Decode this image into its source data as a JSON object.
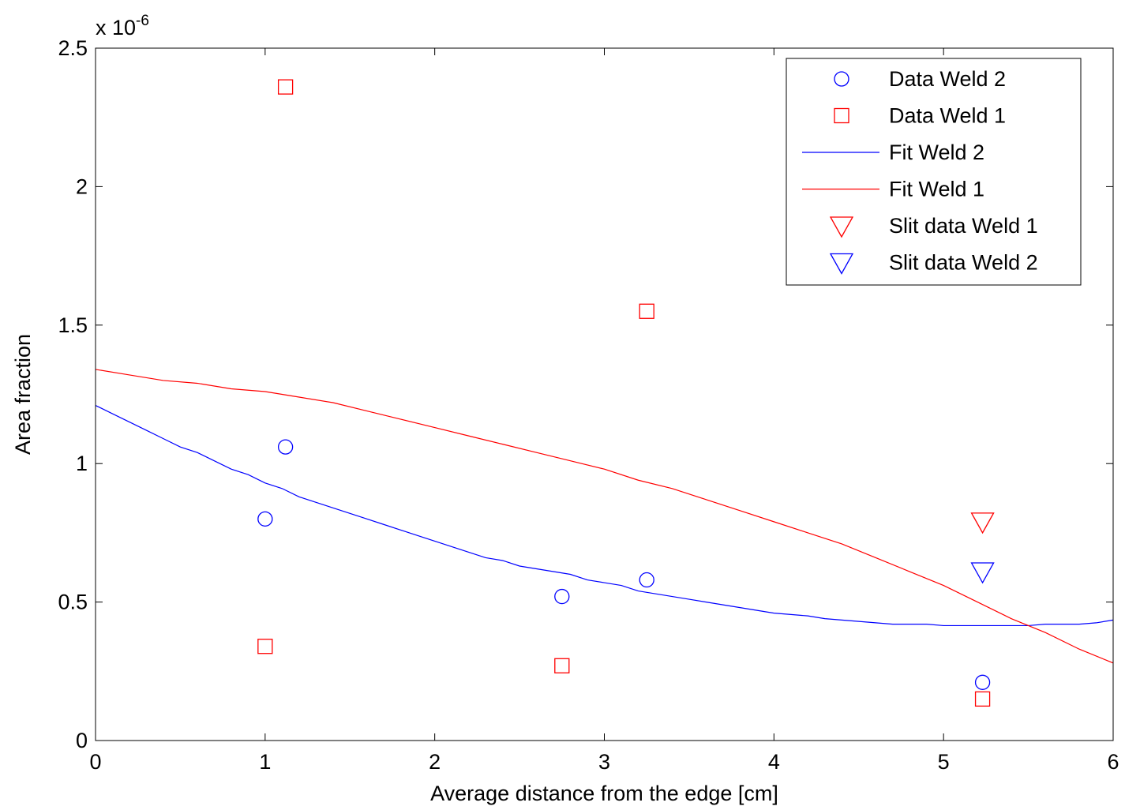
{
  "chart_data": {
    "type": "scatter",
    "xlabel": "Average distance from the edge [cm]",
    "ylabel": "Area fraction",
    "y_exponent_label": "x 10",
    "y_exponent_power": "-6",
    "xlim": [
      0,
      6
    ],
    "ylim": [
      0,
      2.5
    ],
    "x_ticks": [
      0,
      1,
      2,
      3,
      4,
      5,
      6
    ],
    "x_tick_labels": [
      "0",
      "1",
      "2",
      "3",
      "4",
      "5",
      "6"
    ],
    "y_ticks": [
      0,
      0.5,
      1,
      1.5,
      2,
      2.5
    ],
    "y_tick_labels": [
      "0",
      "0.5",
      "1",
      "1.5",
      "2",
      "2.5"
    ],
    "grid": false,
    "legend_position": "top-right",
    "series": [
      {
        "name": "Data Weld 2",
        "kind": "scatter",
        "marker": "circle",
        "color": "#0000ff",
        "x": [
          1.0,
          1.12,
          2.75,
          3.25,
          5.23
        ],
        "y": [
          0.8,
          1.06,
          0.52,
          0.58,
          0.21
        ]
      },
      {
        "name": "Data Weld 1",
        "kind": "scatter",
        "marker": "square",
        "color": "#ff0000",
        "x": [
          1.12,
          1.0,
          2.75,
          3.25,
          5.23
        ],
        "y": [
          2.36,
          0.34,
          0.27,
          1.55,
          0.15
        ]
      },
      {
        "name": "Fit Weld 2",
        "kind": "line",
        "color": "#0000ff",
        "x": [
          0,
          0.1,
          0.2,
          0.3,
          0.4,
          0.5,
          0.6,
          0.7,
          0.8,
          0.9,
          1.0,
          1.1,
          1.2,
          1.3,
          1.4,
          1.5,
          1.6,
          1.7,
          1.8,
          1.9,
          2.0,
          2.1,
          2.2,
          2.3,
          2.4,
          2.5,
          2.6,
          2.7,
          2.8,
          2.9,
          3.0,
          3.1,
          3.2,
          3.3,
          3.4,
          3.5,
          3.6,
          3.7,
          3.8,
          3.9,
          4.0,
          4.1,
          4.2,
          4.3,
          4.4,
          4.5,
          4.6,
          4.7,
          4.8,
          4.9,
          5.0,
          5.1,
          5.2,
          5.3,
          5.4,
          5.5,
          5.6,
          5.7,
          5.8,
          5.9,
          6.0
        ],
        "y": [
          1.21,
          1.18,
          1.15,
          1.12,
          1.09,
          1.06,
          1.04,
          1.01,
          0.98,
          0.96,
          0.93,
          0.91,
          0.88,
          0.86,
          0.84,
          0.82,
          0.8,
          0.78,
          0.76,
          0.74,
          0.72,
          0.7,
          0.68,
          0.66,
          0.65,
          0.63,
          0.62,
          0.61,
          0.6,
          0.58,
          0.57,
          0.56,
          0.54,
          0.53,
          0.52,
          0.51,
          0.5,
          0.49,
          0.48,
          0.47,
          0.46,
          0.455,
          0.45,
          0.44,
          0.435,
          0.43,
          0.425,
          0.42,
          0.42,
          0.42,
          0.415,
          0.415,
          0.415,
          0.415,
          0.415,
          0.415,
          0.42,
          0.42,
          0.42,
          0.425,
          0.435
        ]
      },
      {
        "name": "Fit Weld 1",
        "kind": "line",
        "color": "#ff0000",
        "x": [
          0,
          0.2,
          0.4,
          0.6,
          0.8,
          1.0,
          1.2,
          1.4,
          1.6,
          1.8,
          2.0,
          2.2,
          2.4,
          2.6,
          2.8,
          3.0,
          3.2,
          3.4,
          3.6,
          3.8,
          4.0,
          4.2,
          4.4,
          4.6,
          4.8,
          5.0,
          5.2,
          5.4,
          5.6,
          5.8,
          6.0
        ],
        "y": [
          1.34,
          1.32,
          1.3,
          1.29,
          1.27,
          1.26,
          1.24,
          1.22,
          1.19,
          1.16,
          1.13,
          1.1,
          1.07,
          1.04,
          1.01,
          0.98,
          0.94,
          0.91,
          0.87,
          0.83,
          0.79,
          0.75,
          0.71,
          0.66,
          0.61,
          0.56,
          0.5,
          0.44,
          0.39,
          0.33,
          0.28
        ]
      },
      {
        "name": "Slit data Weld 1",
        "kind": "scatter",
        "marker": "triangle-down",
        "color": "#ff0000",
        "x": [
          5.23
        ],
        "y": [
          0.79
        ]
      },
      {
        "name": "Slit data Weld 2",
        "kind": "scatter",
        "marker": "triangle-down",
        "color": "#0000ff",
        "x": [
          5.23
        ],
        "y": [
          0.61
        ]
      }
    ]
  }
}
